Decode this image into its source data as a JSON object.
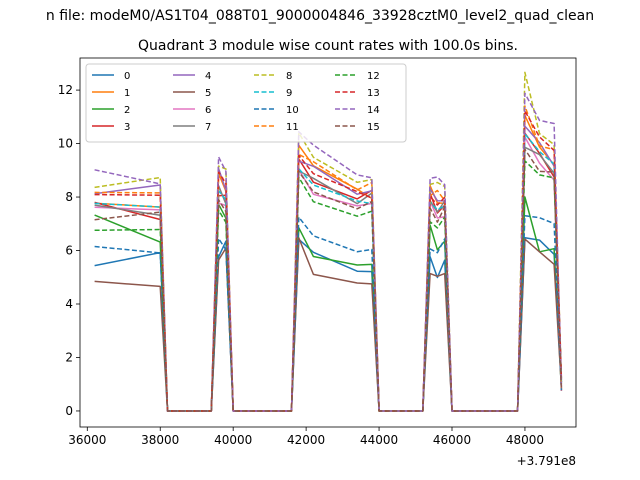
{
  "figure": {
    "suptitle": "n file: modeM0/AS1T04_088T01_9000004846_33928cztM0_level2_quad_clean"
  },
  "chart_data": {
    "type": "line",
    "title": "Quadrant 3 module wise count rates with 100.0s bins.",
    "xlabel": "",
    "ylabel": "",
    "x_offset_label": "+3.791e8",
    "xlim": [
      35800,
      49400
    ],
    "ylim": [
      -0.6,
      13.2
    ],
    "xticks": [
      36000,
      38000,
      40000,
      42000,
      44000,
      46000,
      48000
    ],
    "yticks": [
      0,
      2,
      4,
      6,
      8,
      10,
      12
    ],
    "grid": false,
    "legend": {
      "placement": "upper-left",
      "columns": 4
    },
    "x": [
      36200,
      38000,
      38200,
      39400,
      39600,
      39800,
      40000,
      41600,
      41800,
      42200,
      43400,
      43800,
      44000,
      45200,
      45400,
      45600,
      45800,
      46000,
      47800,
      48000,
      48400,
      48800,
      49000
    ],
    "series": [
      {
        "name": "0",
        "color": "#1f77b4",
        "dash": "solid",
        "values": [
          5.5,
          5.8,
          0,
          0,
          6.0,
          6.1,
          0,
          0,
          6.6,
          5.8,
          5.3,
          5.2,
          0,
          0,
          5.6,
          5.2,
          5.4,
          0,
          0,
          6.7,
          6.2,
          6.0,
          1.0
        ]
      },
      {
        "name": "1",
        "color": "#ff7f0e",
        "dash": "solid",
        "values": [
          8.0,
          7.8,
          0,
          0,
          8.8,
          8.4,
          0,
          0,
          9.7,
          9.0,
          8.4,
          8.2,
          0,
          0,
          8.2,
          7.8,
          8.0,
          0,
          0,
          10.8,
          9.8,
          9.4,
          1.0
        ]
      },
      {
        "name": "2",
        "color": "#2ca02c",
        "dash": "solid",
        "values": [
          7.2,
          6.1,
          0,
          0,
          7.6,
          7.2,
          0,
          0,
          7.1,
          6.0,
          5.6,
          5.5,
          0,
          0,
          6.7,
          5.8,
          6.2,
          0,
          0,
          8.2,
          6.2,
          6.3,
          1.0
        ]
      },
      {
        "name": "3",
        "color": "#d62728",
        "dash": "solid",
        "values": [
          7.6,
          7.4,
          0,
          0,
          8.3,
          7.9,
          0,
          0,
          9.2,
          8.6,
          8.1,
          8.0,
          0,
          0,
          7.9,
          7.6,
          7.7,
          0,
          0,
          10.3,
          9.5,
          9.0,
          1.0
        ]
      },
      {
        "name": "4",
        "color": "#9467bd",
        "dash": "solid",
        "values": [
          8.3,
          8.2,
          0,
          0,
          8.9,
          8.5,
          0,
          0,
          9.5,
          8.9,
          8.3,
          8.2,
          0,
          0,
          8.1,
          7.9,
          8.0,
          0,
          0,
          10.6,
          9.9,
          9.4,
          1.0
        ]
      },
      {
        "name": "5",
        "color": "#8c564b",
        "dash": "solid",
        "values": [
          5.0,
          4.9,
          0,
          0,
          5.6,
          5.9,
          0,
          0,
          6.4,
          5.2,
          5.0,
          5.0,
          0,
          0,
          5.0,
          4.8,
          4.9,
          0,
          0,
          6.6,
          6.2,
          5.7,
          1.0
        ]
      },
      {
        "name": "6",
        "color": "#e377c2",
        "dash": "solid",
        "values": [
          7.4,
          7.3,
          0,
          0,
          8.0,
          7.7,
          0,
          0,
          9.0,
          8.3,
          7.9,
          7.8,
          0,
          0,
          7.8,
          7.4,
          7.5,
          0,
          0,
          10.0,
          9.2,
          8.8,
          1.0
        ]
      },
      {
        "name": "7",
        "color": "#7f7f7f",
        "dash": "solid",
        "values": [
          7.6,
          7.5,
          0,
          0,
          8.2,
          7.9,
          0,
          0,
          9.1,
          8.5,
          8.0,
          7.9,
          0,
          0,
          7.9,
          7.5,
          7.7,
          0,
          0,
          10.1,
          9.4,
          9.0,
          1.0
        ]
      },
      {
        "name": "8",
        "color": "#bcbd22",
        "dash": "dashed",
        "values": [
          8.6,
          8.6,
          0,
          0,
          9.2,
          8.8,
          0,
          0,
          10.2,
          9.4,
          8.8,
          8.6,
          0,
          0,
          8.6,
          8.3,
          8.4,
          0,
          0,
          12.5,
          10.6,
          10.0,
          1.0
        ]
      },
      {
        "name": "9",
        "color": "#17becf",
        "dash": "dashed",
        "values": [
          7.8,
          7.7,
          0,
          0,
          8.4,
          8.1,
          0,
          0,
          9.3,
          8.7,
          8.1,
          8.0,
          0,
          0,
          8.0,
          7.7,
          7.8,
          0,
          0,
          10.4,
          9.7,
          9.2,
          1.0
        ]
      },
      {
        "name": "10",
        "color": "#1f77b4",
        "dash": "dashed",
        "values": [
          5.9,
          5.9,
          0,
          0,
          6.2,
          6.0,
          0,
          0,
          7.0,
          6.5,
          6.2,
          6.1,
          0,
          0,
          6.3,
          6.0,
          6.2,
          0,
          0,
          7.4,
          7.0,
          6.9,
          1.0
        ]
      },
      {
        "name": "11",
        "color": "#ff7f0e",
        "dash": "dashed",
        "values": [
          8.2,
          8.1,
          0,
          0,
          8.9,
          8.5,
          0,
          0,
          9.8,
          9.1,
          8.5,
          8.3,
          0,
          0,
          8.3,
          8.0,
          8.1,
          0,
          0,
          11.2,
          10.1,
          9.6,
          1.0
        ]
      },
      {
        "name": "12",
        "color": "#2ca02c",
        "dash": "dashed",
        "values": [
          7.0,
          6.9,
          0,
          0,
          7.6,
          7.3,
          0,
          0,
          8.6,
          8.0,
          7.5,
          7.4,
          0,
          0,
          7.3,
          7.0,
          7.1,
          0,
          0,
          9.6,
          8.9,
          8.5,
          1.0
        ]
      },
      {
        "name": "13",
        "color": "#d62728",
        "dash": "dashed",
        "values": [
          8.0,
          7.9,
          0,
          0,
          8.7,
          8.3,
          0,
          0,
          9.6,
          9.0,
          8.4,
          8.2,
          0,
          0,
          8.2,
          7.8,
          8.0,
          0,
          0,
          11.0,
          10.0,
          9.5,
          1.0
        ]
      },
      {
        "name": "14",
        "color": "#9467bd",
        "dash": "dashed",
        "values": [
          8.8,
          8.7,
          0,
          0,
          9.7,
          9.0,
          0,
          0,
          10.5,
          9.7,
          9.0,
          8.8,
          0,
          0,
          8.8,
          8.5,
          8.6,
          0,
          0,
          12.0,
          11.0,
          10.5,
          1.0
        ]
      },
      {
        "name": "15",
        "color": "#8c564b",
        "dash": "dashed",
        "values": [
          7.3,
          7.2,
          0,
          0,
          7.9,
          7.6,
          0,
          0,
          8.8,
          8.2,
          7.7,
          7.6,
          0,
          0,
          7.6,
          7.2,
          7.4,
          0,
          0,
          9.8,
          9.1,
          8.7,
          1.0
        ]
      }
    ]
  }
}
